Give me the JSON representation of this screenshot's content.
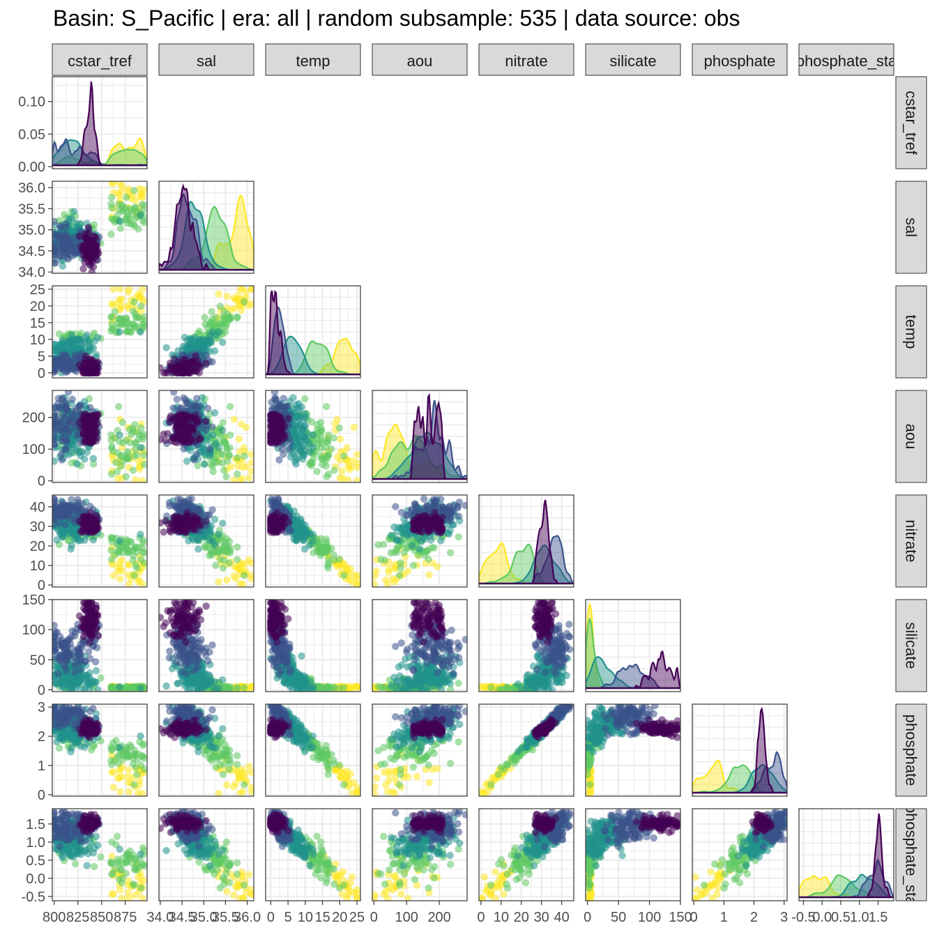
{
  "title": "Basin: S_Pacific | era: all | random subsample: 535 | data source: obs",
  "colors": {
    "viridis": [
      "#440154",
      "#3b528b",
      "#21918c",
      "#5ec962",
      "#fde725"
    ],
    "strip_fill": "#d9d9d9",
    "panel_border": "#333333",
    "grid": "#ebebeb"
  },
  "chart_data": {
    "type": "scatter",
    "layout": "lower-triangle pairs matrix with density diagonal",
    "variables": [
      "cstar_tref",
      "sal",
      "temp",
      "aou",
      "nitrate",
      "silicate",
      "phosphate",
      "phosphate_star"
    ],
    "strip_labels": [
      "cstar_tref",
      "sal",
      "temp",
      "aou",
      "nitrate",
      "silicate",
      "phosphate",
      "phosphate_sta"
    ],
    "row_strip_labels": [
      "cstar_tref",
      "sal",
      "temp",
      "aou",
      "nitrate",
      "silicate",
      "phosphate",
      "phosphate_sta"
    ],
    "ranges": {
      "cstar_tref": [
        798,
        898
      ],
      "sal": [
        33.97,
        36.15
      ],
      "temp": [
        -1.5,
        26
      ],
      "aou": [
        -5,
        285
      ],
      "nitrate": [
        -1,
        46
      ],
      "silicate": [
        -3,
        150
      ],
      "phosphate": [
        -0.05,
        3.1
      ],
      "phosphate_star": [
        -0.62,
        1.92
      ]
    },
    "x_tick_labels": {
      "cstar_tref": [
        "800",
        "825",
        "850",
        "875"
      ],
      "sal": [
        "34.0",
        "34.5",
        "35.0",
        "35.5",
        "36.0"
      ],
      "temp": [
        "0",
        "5",
        "10",
        "15",
        "20",
        "25"
      ],
      "aou": [
        "0",
        "100",
        "200"
      ],
      "nitrate": [
        "0",
        "10",
        "20",
        "30",
        "40"
      ],
      "silicate": [
        "0",
        "50",
        "100",
        "150"
      ],
      "phosphate": [
        "0",
        "1",
        "2",
        "3"
      ],
      "phosphate_star": [
        "-0.5",
        "0.0",
        "0.5",
        "1.0",
        "1.5"
      ]
    },
    "y_tick_labels": {
      "cstar_tref": [
        "0.00",
        "0.05",
        "0.10"
      ],
      "sal": [
        "34.0",
        "34.5",
        "35.0",
        "35.5",
        "36.0"
      ],
      "temp": [
        "0",
        "5",
        "10",
        "15",
        "20",
        "25"
      ],
      "aou": [
        "0",
        "100",
        "200"
      ],
      "nitrate": [
        "0",
        "10",
        "20",
        "30",
        "40"
      ],
      "silicate": [
        "0",
        "50",
        "100",
        "150"
      ],
      "phosphate": [
        "0",
        "1",
        "2",
        "3"
      ],
      "phosphate_star": [
        "-0.5",
        "0.0",
        "0.5",
        "1.0",
        "1.5"
      ]
    },
    "first_density_ylim": [
      0,
      0.135
    ],
    "groups": [
      {
        "group": 1,
        "color": "#440154",
        "cstar_tref": 838,
        "sal": 34.68,
        "temp": 1.7,
        "aou": 135,
        "nitrate": 32.5,
        "silicate": 128,
        "phosphate": 2.25,
        "phosphate_star": 1.55
      },
      {
        "group": 2,
        "color": "#3b528b",
        "cstar_tref": 838,
        "sal": 34.65,
        "temp": 2.2,
        "aou": 190,
        "nitrate": 34,
        "silicate": 120,
        "phosphate": 2.35,
        "phosphate_star": 1.5
      },
      {
        "group": 3,
        "color": "#21918c",
        "cstar_tref": 818,
        "sal": 34.45,
        "temp": 3.5,
        "aou": 185,
        "nitrate": 36,
        "silicate": 80,
        "phosphate": 2.5,
        "phosphate_star": 1.45
      },
      {
        "group": 4,
        "color": "#5ec962",
        "cstar_tref": 825,
        "sal": 34.5,
        "temp": 8,
        "aou": 110,
        "nitrate": 25,
        "silicate": 25,
        "phosphate": 1.8,
        "phosphate_star": 1.1
      },
      {
        "group": 5,
        "color": "#fde725",
        "cstar_tref": 868,
        "sal": 35.2,
        "temp": 17,
        "aou": 50,
        "nitrate": 6,
        "silicate": 3,
        "phosphate": 0.55,
        "phosphate_star": -0.35
      }
    ],
    "n_points": 535
  }
}
